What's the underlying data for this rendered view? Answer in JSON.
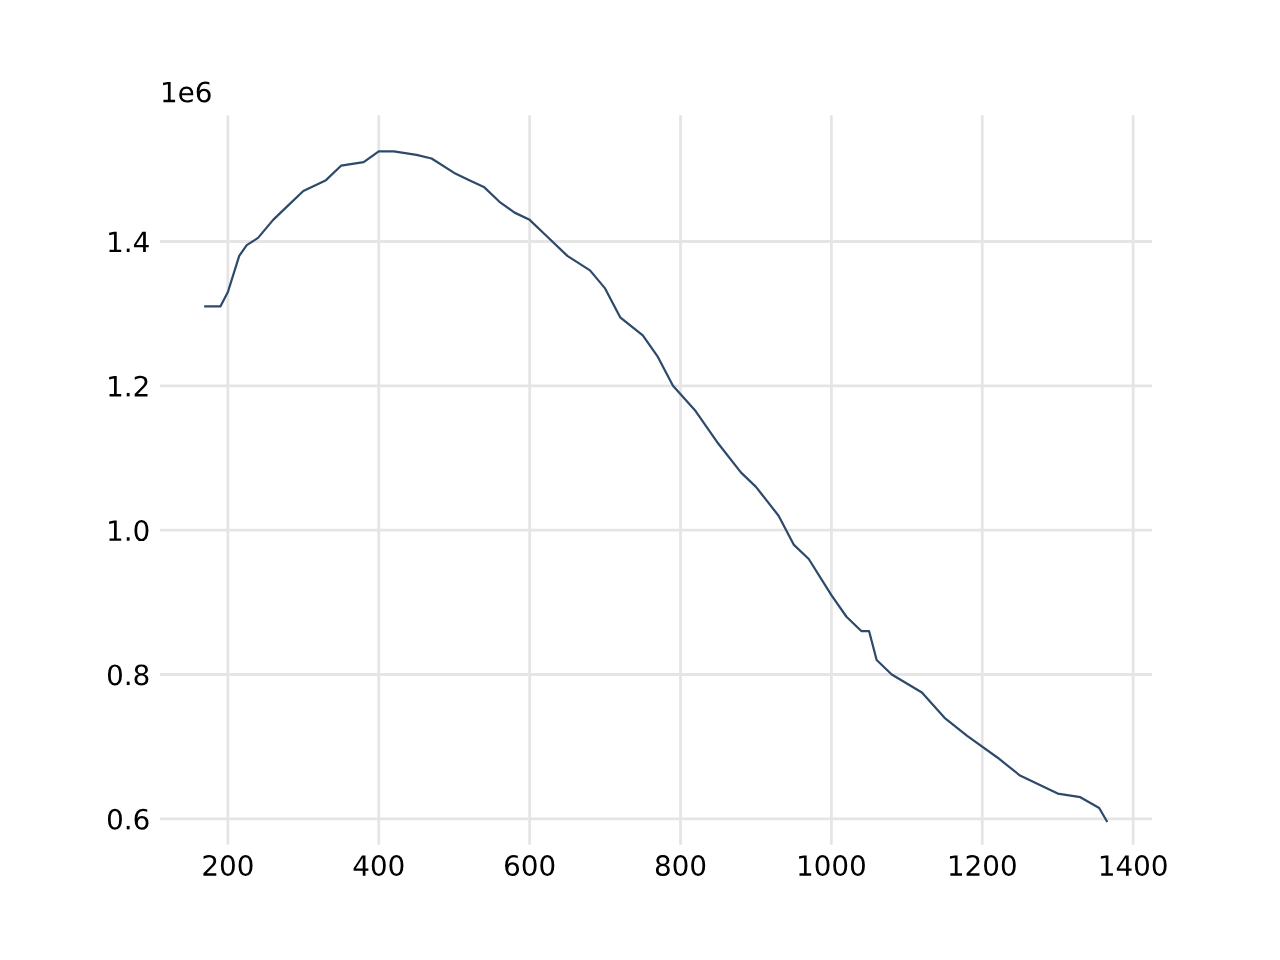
{
  "chart_data": {
    "type": "line",
    "annotations": [
      "1e6"
    ],
    "series": [
      {
        "color": "#2e4a6b",
        "x": [
          170,
          190,
          200,
          215,
          225,
          240,
          260,
          280,
          300,
          330,
          350,
          380,
          400,
          420,
          450,
          470,
          500,
          520,
          540,
          560,
          580,
          600,
          620,
          650,
          680,
          700,
          720,
          750,
          770,
          790,
          820,
          850,
          880,
          900,
          930,
          950,
          970,
          1000,
          1020,
          1040,
          1050,
          1060,
          1080,
          1120,
          1150,
          1180,
          1220,
          1250,
          1300,
          1330,
          1355,
          1365
        ],
        "values": [
          1.31,
          1.31,
          1.33,
          1.38,
          1.395,
          1.405,
          1.43,
          1.45,
          1.47,
          1.485,
          1.505,
          1.51,
          1.525,
          1.525,
          1.52,
          1.515,
          1.495,
          1.485,
          1.475,
          1.455,
          1.44,
          1.43,
          1.41,
          1.38,
          1.36,
          1.335,
          1.295,
          1.27,
          1.24,
          1.2,
          1.165,
          1.12,
          1.08,
          1.06,
          1.02,
          0.98,
          0.96,
          0.91,
          0.88,
          0.86,
          0.86,
          0.82,
          0.8,
          0.775,
          0.74,
          0.715,
          0.685,
          0.66,
          0.635,
          0.63,
          0.615,
          0.597
        ]
      }
    ],
    "xlim": [
      110,
      1425
    ],
    "xticks": [
      200,
      400,
      600,
      800,
      1000,
      1200,
      1400
    ],
    "ylim": [
      0.564,
      1.575
    ],
    "yticks": [
      {
        "value": 0.6,
        "label": "0.6"
      },
      {
        "value": 0.8,
        "label": "0.8"
      },
      {
        "value": 1.0,
        "label": "1.0"
      },
      {
        "value": 1.2,
        "label": "1.2"
      },
      {
        "value": 1.4,
        "label": "1.4"
      }
    ],
    "grid": true,
    "legend": false
  }
}
